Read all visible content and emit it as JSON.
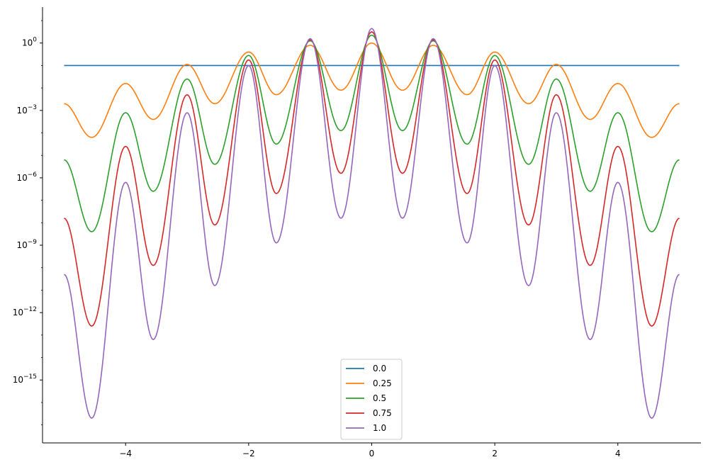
{
  "chart_data": {
    "type": "line",
    "title": "",
    "xlabel": "",
    "ylabel": "",
    "xlim": [
      -5.35,
      5.35
    ],
    "y_scale": "log",
    "ylim_log10": [
      -17.8,
      1.6
    ],
    "grid": false,
    "legend_placement": "lower center",
    "x_ticks": [
      {
        "value": -4,
        "label": "−4"
      },
      {
        "value": -2,
        "label": "−2"
      },
      {
        "value": 0,
        "label": "0"
      },
      {
        "value": 2,
        "label": "2"
      },
      {
        "value": 4,
        "label": "4"
      }
    ],
    "y_ticks": [
      {
        "exponent": 0,
        "base": "10",
        "sup": "0"
      },
      {
        "exponent": -3,
        "base": "10",
        "sup": "−3"
      },
      {
        "exponent": -6,
        "base": "10",
        "sup": "−6"
      },
      {
        "exponent": -9,
        "base": "10",
        "sup": "−9"
      },
      {
        "exponent": -12,
        "base": "10",
        "sup": "−12"
      },
      {
        "exponent": -15,
        "base": "10",
        "sup": "−15"
      }
    ],
    "x_range": [
      -5,
      5
    ],
    "series": [
      {
        "name": "0.0",
        "color": "#1f77b4",
        "points_log10": [
          [
            -5,
            -1.0
          ],
          [
            5,
            -1.0
          ]
        ]
      },
      {
        "name": "0.25",
        "color": "#ff7f0e",
        "points_log10": [
          [
            -5,
            -2.7
          ],
          [
            -4.55,
            -4.2
          ],
          [
            -4,
            -1.8
          ],
          [
            -3.55,
            -3.4
          ],
          [
            -3,
            -0.95
          ],
          [
            -2.55,
            -2.7
          ],
          [
            -2,
            -0.4
          ],
          [
            -1.55,
            -2.3
          ],
          [
            -1,
            -0.1
          ],
          [
            -0.5,
            -2.1
          ],
          [
            0,
            0
          ],
          [
            0.5,
            -2.1
          ],
          [
            1,
            -0.1
          ],
          [
            1.55,
            -2.3
          ],
          [
            2,
            -0.4
          ],
          [
            2.55,
            -2.7
          ],
          [
            3,
            -0.95
          ],
          [
            3.55,
            -3.4
          ],
          [
            4,
            -1.8
          ],
          [
            4.55,
            -4.2
          ],
          [
            5,
            -2.7
          ]
        ]
      },
      {
        "name": "0.5",
        "color": "#2ca02c",
        "points_log10": [
          [
            -5,
            -5.2
          ],
          [
            -4.55,
            -8.4
          ],
          [
            -4,
            -3.1
          ],
          [
            -3.55,
            -6.6
          ],
          [
            -3,
            -1.6
          ],
          [
            -2.55,
            -5.4
          ],
          [
            -2,
            -0.55
          ],
          [
            -1.55,
            -4.5
          ],
          [
            -1,
            0.1
          ],
          [
            -0.5,
            -3.9
          ],
          [
            0,
            0.35
          ],
          [
            0.5,
            -3.9
          ],
          [
            1,
            0.1
          ],
          [
            1.55,
            -4.5
          ],
          [
            2,
            -0.55
          ],
          [
            2.55,
            -5.4
          ],
          [
            3,
            -1.6
          ],
          [
            3.55,
            -6.6
          ],
          [
            4,
            -3.1
          ],
          [
            4.55,
            -8.4
          ],
          [
            5,
            -5.2
          ]
        ]
      },
      {
        "name": "0.75",
        "color": "#d62728",
        "points_log10": [
          [
            -5,
            -7.8
          ],
          [
            -4.55,
            -12.6
          ],
          [
            -4,
            -4.6
          ],
          [
            -3.55,
            -9.9
          ],
          [
            -3,
            -2.3
          ],
          [
            -2.55,
            -8.1
          ],
          [
            -2,
            -0.75
          ],
          [
            -1.55,
            -6.7
          ],
          [
            -1,
            0.15
          ],
          [
            -0.5,
            -5.8
          ],
          [
            0,
            0.5
          ],
          [
            0.5,
            -5.8
          ],
          [
            1,
            0.15
          ],
          [
            1.55,
            -6.7
          ],
          [
            2,
            -0.75
          ],
          [
            2.55,
            -8.1
          ],
          [
            3,
            -2.3
          ],
          [
            3.55,
            -9.9
          ],
          [
            4,
            -4.6
          ],
          [
            4.55,
            -12.6
          ],
          [
            5,
            -7.8
          ]
        ]
      },
      {
        "name": "1.0",
        "color": "#9467bd",
        "points_log10": [
          [
            -5,
            -10.3
          ],
          [
            -4.55,
            -16.7
          ],
          [
            -4,
            -6.2
          ],
          [
            -3.55,
            -13.2
          ],
          [
            -3,
            -3.1
          ],
          [
            -2.55,
            -10.8
          ],
          [
            -2,
            -1.0
          ],
          [
            -1.55,
            -8.9
          ],
          [
            -1,
            0.2
          ],
          [
            -0.5,
            -7.8
          ],
          [
            0,
            0.65
          ],
          [
            0.5,
            -7.8
          ],
          [
            1,
            0.2
          ],
          [
            1.55,
            -8.9
          ],
          [
            2,
            -1.0
          ],
          [
            2.55,
            -10.8
          ],
          [
            3,
            -3.1
          ],
          [
            3.55,
            -13.2
          ],
          [
            4,
            -6.2
          ],
          [
            4.55,
            -16.7
          ],
          [
            5,
            -10.3
          ]
        ]
      }
    ]
  }
}
